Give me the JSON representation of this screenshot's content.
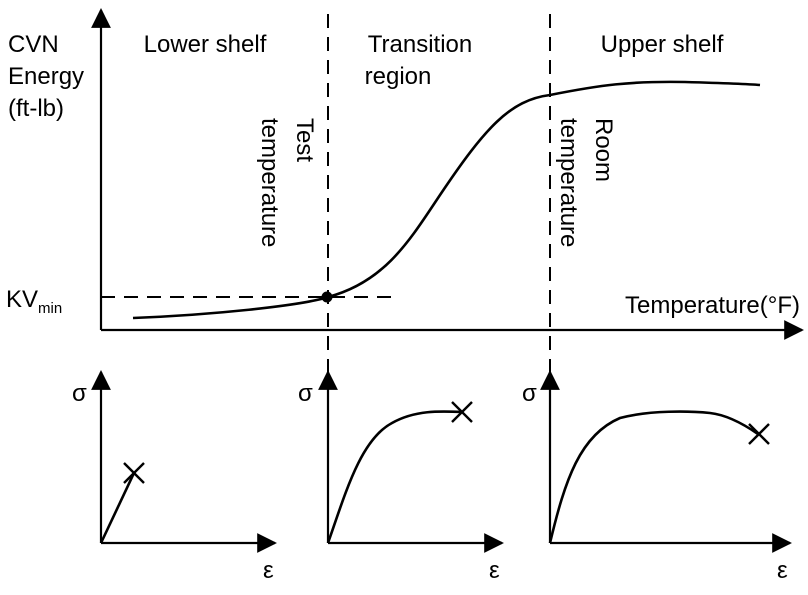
{
  "main_plot": {
    "y_axis_label": [
      "CVN",
      "Energy",
      "(ft-lb)"
    ],
    "x_axis_label": "Temperature(°F)",
    "kv_label": "KV",
    "kv_subscript": "min",
    "regions": {
      "lower": "Lower shelf",
      "transition": [
        "Transition",
        "region"
      ],
      "upper": "Upper shelf"
    },
    "test_temperature": [
      "Test",
      "temperature"
    ],
    "room_temperature": [
      "Room",
      "temperature"
    ]
  },
  "stress_strain_plots": [
    {
      "y_label": "σ",
      "x_label": "ε",
      "behavior": "brittle"
    },
    {
      "y_label": "σ",
      "x_label": "ε",
      "behavior": "transition"
    },
    {
      "y_label": "σ",
      "x_label": "ε",
      "behavior": "ductile"
    }
  ]
}
